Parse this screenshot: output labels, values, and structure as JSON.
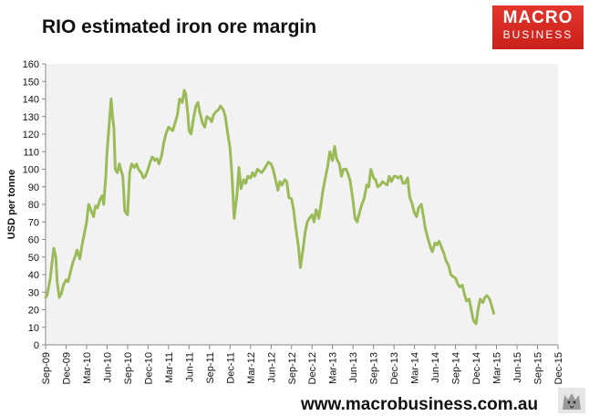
{
  "header": {
    "title": "RIO estimated iron ore margin",
    "brand_line1": "MACRO",
    "brand_line2": "BUSINESS"
  },
  "footer": {
    "url": "www.macrobusiness.com.au"
  },
  "colors": {
    "series": "#9bbb59",
    "plot_bg": "#f2f2f2",
    "brand_red": "#d42b23"
  },
  "chart_data": {
    "type": "line",
    "title": "RIO estimated iron ore margin",
    "xlabel": "",
    "ylabel": "USD per tonne",
    "ylim": [
      0,
      160
    ],
    "yticks": [
      0,
      10,
      20,
      30,
      40,
      50,
      60,
      70,
      80,
      90,
      100,
      110,
      120,
      130,
      140,
      150,
      160
    ],
    "x_ticks": [
      "Sep-09",
      "Dec-09",
      "Mar-10",
      "Jun-10",
      "Sep-10",
      "Dec-10",
      "Mar-11",
      "Jun-11",
      "Sep-11",
      "Dec-11",
      "Mar-12",
      "Jun-12",
      "Sep-12",
      "Dec-12",
      "Mar-13",
      "Jun-13",
      "Sep-13",
      "Dec-13",
      "Mar-14",
      "Jun-14",
      "Sep-14",
      "Dec-14",
      "Mar-15",
      "Jun-15",
      "Sep-15",
      "Dec-15"
    ],
    "grid": false,
    "series": [
      {
        "name": "RIO estimated iron ore margin",
        "x_month_index": [
          0,
          0.2,
          0.4,
          0.7,
          1.0,
          1.2,
          1.5,
          1.7,
          2.0,
          2.3,
          2.6,
          3.0,
          3.3,
          3.6,
          4.0,
          4.3,
          4.6,
          5.0,
          5.3,
          5.6,
          6.0,
          6.3,
          6.6,
          7.0,
          7.3,
          7.6,
          8.0,
          8.3,
          8.5,
          8.8,
          9.0,
          9.3,
          9.6,
          9.8,
          10.0,
          10.2,
          10.5,
          10.8,
          11.0,
          11.3,
          11.6,
          12.0,
          12.3,
          12.6,
          13.0,
          13.3,
          13.6,
          14.0,
          14.3,
          14.6,
          15.0,
          15.3,
          15.6,
          16.0,
          16.3,
          16.6,
          17.0,
          17.3,
          17.6,
          18.0,
          18.3,
          18.6,
          19.0,
          19.3,
          19.6,
          20.0,
          20.3,
          20.5,
          20.8,
          21.0,
          21.3,
          21.6,
          22.0,
          22.3,
          22.6,
          23.0,
          23.3,
          23.6,
          24.0,
          24.3,
          24.6,
          25.0,
          25.3,
          25.6,
          26.0,
          26.3,
          26.6,
          27.0,
          27.3,
          27.6,
          28.0,
          28.3,
          28.6,
          29.0,
          29.3,
          29.6,
          30.0,
          30.3,
          30.6,
          31.0,
          31.3,
          31.6,
          32.0,
          32.3,
          32.6,
          33.0,
          33.3,
          33.6,
          34.0,
          34.3,
          34.6,
          35.0,
          35.3,
          35.6,
          36.0,
          36.3,
          36.6,
          37.0,
          37.3,
          37.6,
          38.0,
          38.3,
          38.6,
          39.0,
          39.3,
          39.6,
          40.0,
          40.3,
          40.6,
          41.0,
          41.3,
          41.6,
          42.0,
          42.3,
          42.6,
          43.0,
          43.3,
          43.6,
          44.0,
          44.3,
          44.6,
          45.0,
          45.3,
          45.6,
          46.0,
          46.3,
          46.6,
          47.0,
          47.3,
          47.6,
          48.0,
          48.3,
          48.6,
          49.0,
          49.3,
          49.6,
          50.0,
          50.3,
          50.6,
          51.0,
          51.3,
          51.6,
          52.0,
          52.3,
          52.6,
          53.0,
          53.3,
          53.6,
          54.0,
          54.3,
          54.6,
          55.0,
          55.3,
          55.6,
          56.0,
          56.3,
          56.6,
          57.0,
          57.3,
          57.6,
          58.0,
          58.3,
          58.6,
          59.0,
          59.3,
          59.6,
          60.0,
          60.3,
          60.6,
          61.0,
          61.3,
          61.6,
          62.0,
          62.3,
          62.6,
          63.0,
          63.3,
          63.6,
          64.0,
          64.3,
          64.6,
          65.0,
          65.3,
          65.6,
          66.0,
          66.3,
          66.6,
          67.0,
          67.3,
          67.6,
          68.0,
          68.3,
          68.6,
          69.0,
          69.3,
          69.5
        ],
        "values": [
          27,
          28,
          32,
          38,
          49,
          55,
          50,
          36,
          27,
          29,
          34,
          37,
          36,
          41,
          47,
          50,
          54,
          49,
          56,
          62,
          70,
          80,
          77,
          73,
          79,
          78,
          83,
          85,
          80,
          95,
          110,
          125,
          140,
          130,
          124,
          100,
          98,
          103,
          100,
          96,
          76,
          74,
          98,
          103,
          101,
          103,
          100,
          98,
          95,
          96,
          100,
          104,
          107,
          105,
          106,
          103,
          108,
          115,
          120,
          124,
          123,
          122,
          127,
          131,
          140,
          138,
          145,
          143,
          132,
          122,
          120,
          128,
          136,
          138,
          132,
          126,
          124,
          130,
          129,
          127,
          131,
          133,
          134,
          136,
          134,
          130,
          122,
          112,
          95,
          72,
          85,
          101,
          89,
          94,
          92,
          96,
          95,
          98,
          96,
          100,
          99,
          98,
          100,
          102,
          104,
          103,
          100,
          95,
          88,
          93,
          91,
          94,
          93,
          84,
          83,
          77,
          67,
          56,
          44,
          52,
          64,
          70,
          72,
          74,
          70,
          77,
          72,
          80,
          88,
          96,
          102,
          110,
          105,
          113,
          106,
          103,
          96,
          100,
          100,
          97,
          93,
          82,
          72,
          70,
          76,
          80,
          83,
          91,
          90,
          100,
          95,
          94,
          90,
          91,
          93,
          92,
          91,
          96,
          93,
          96,
          96,
          95,
          96,
          92,
          92,
          95,
          84,
          81,
          75,
          73,
          78,
          80,
          73,
          66,
          60,
          56,
          53,
          58,
          57,
          59,
          55,
          52,
          48,
          45,
          40,
          39,
          38,
          35,
          33,
          34,
          29,
          25,
          26,
          20,
          14,
          12,
          20,
          26,
          24,
          27,
          28,
          26,
          22,
          18
        ],
        "color": "#9bbb59"
      }
    ]
  }
}
